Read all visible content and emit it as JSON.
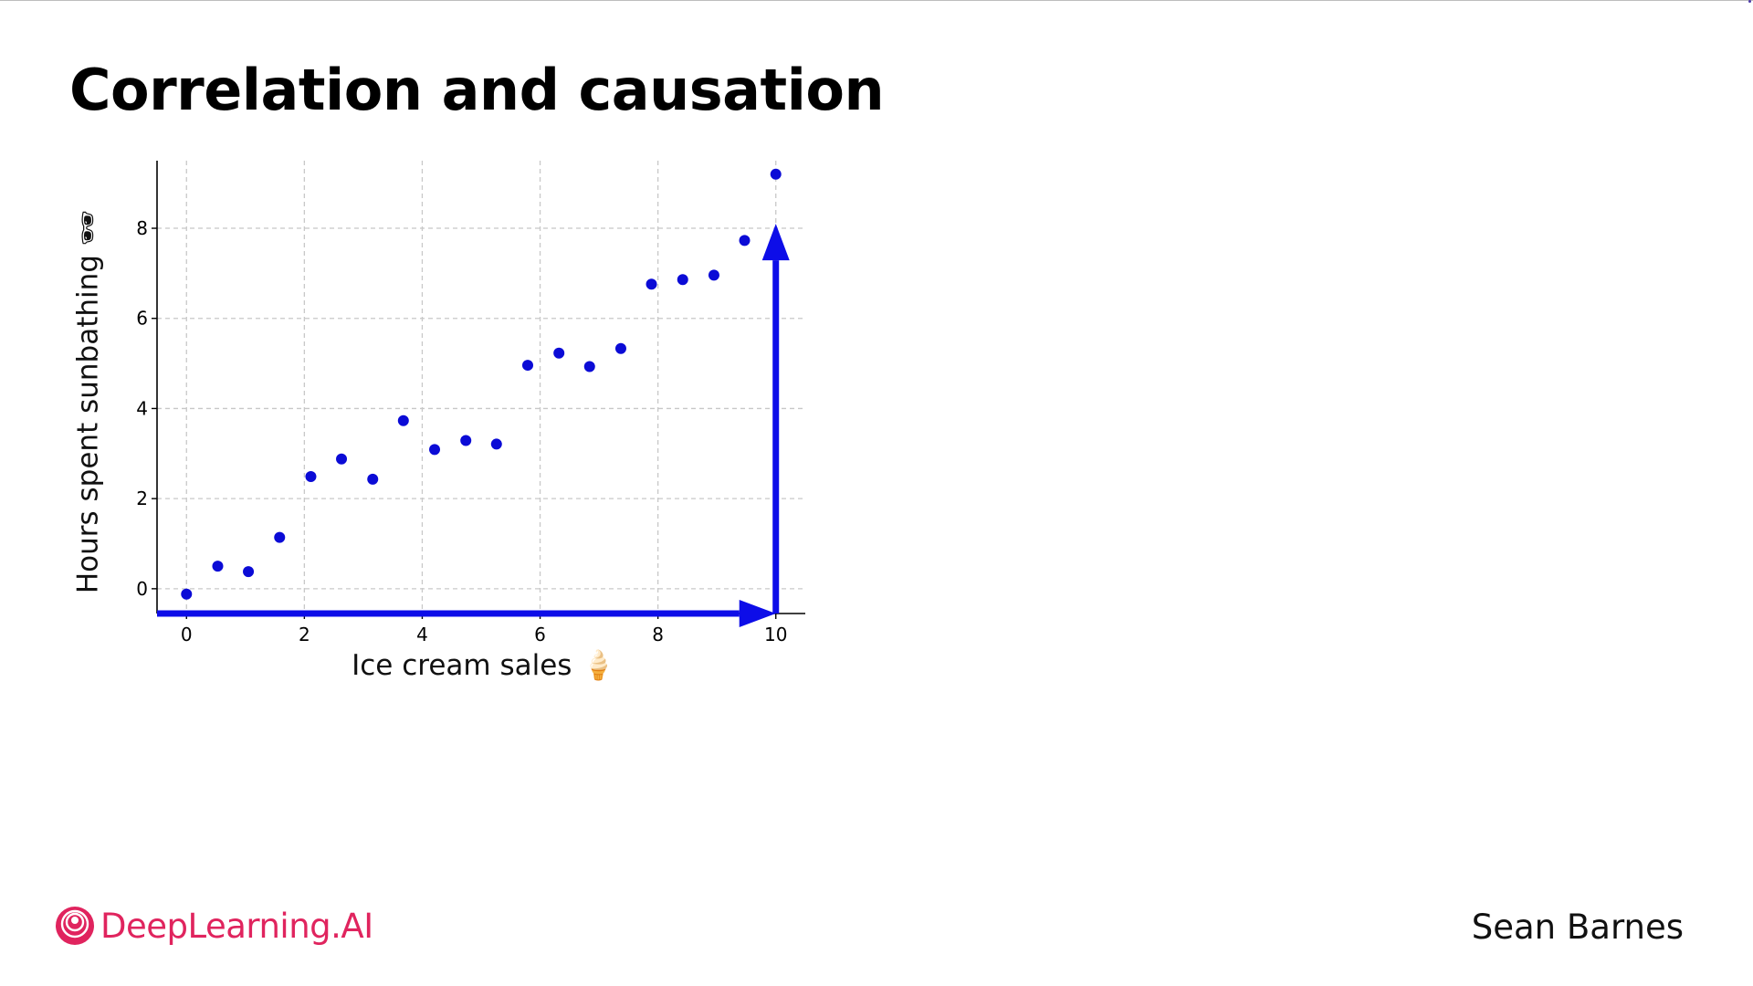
{
  "slide": {
    "title": "Correlation and causation",
    "presenter": "Sean Barnes",
    "logo_text": "DeepLearning.AI"
  },
  "colors": {
    "points": "#0b0bd6",
    "arrows": "#0d0de8",
    "grid": "#c8c8c8",
    "brand": "#e0245e"
  },
  "chart_data": {
    "type": "scatter",
    "xlabel": "Ice cream sales 🍦",
    "ylabel": "Hours spent sunbathing 🕶",
    "xlim": [
      -0.5,
      10.5
    ],
    "ylim": [
      -0.55,
      9.5
    ],
    "xticks": [
      0,
      2,
      4,
      6,
      8,
      10
    ],
    "yticks": [
      0,
      2,
      4,
      6,
      8
    ],
    "grid": true,
    "points": [
      {
        "x": 0.0,
        "y": -0.12
      },
      {
        "x": 0.53,
        "y": 0.5
      },
      {
        "x": 1.05,
        "y": 0.38
      },
      {
        "x": 1.58,
        "y": 1.14
      },
      {
        "x": 2.11,
        "y": 2.49
      },
      {
        "x": 2.63,
        "y": 2.88
      },
      {
        "x": 3.16,
        "y": 2.43
      },
      {
        "x": 3.68,
        "y": 3.73
      },
      {
        "x": 4.21,
        "y": 3.09
      },
      {
        "x": 4.74,
        "y": 3.29
      },
      {
        "x": 5.26,
        "y": 3.21
      },
      {
        "x": 5.79,
        "y": 4.96
      },
      {
        "x": 6.32,
        "y": 5.23
      },
      {
        "x": 6.84,
        "y": 4.93
      },
      {
        "x": 7.37,
        "y": 5.33
      },
      {
        "x": 7.89,
        "y": 6.76
      },
      {
        "x": 8.42,
        "y": 6.86
      },
      {
        "x": 8.95,
        "y": 6.96
      },
      {
        "x": 9.47,
        "y": 7.73
      },
      {
        "x": 10.0,
        "y": 9.2
      }
    ],
    "annotations": [
      {
        "kind": "arrow",
        "from": {
          "x": -0.5,
          "y": -0.55
        },
        "to": {
          "x": 10.0,
          "y": -0.55
        }
      },
      {
        "kind": "arrow",
        "from": {
          "x": 10.0,
          "y": -0.55
        },
        "to": {
          "x": 10.0,
          "y": 8.1
        }
      }
    ]
  }
}
